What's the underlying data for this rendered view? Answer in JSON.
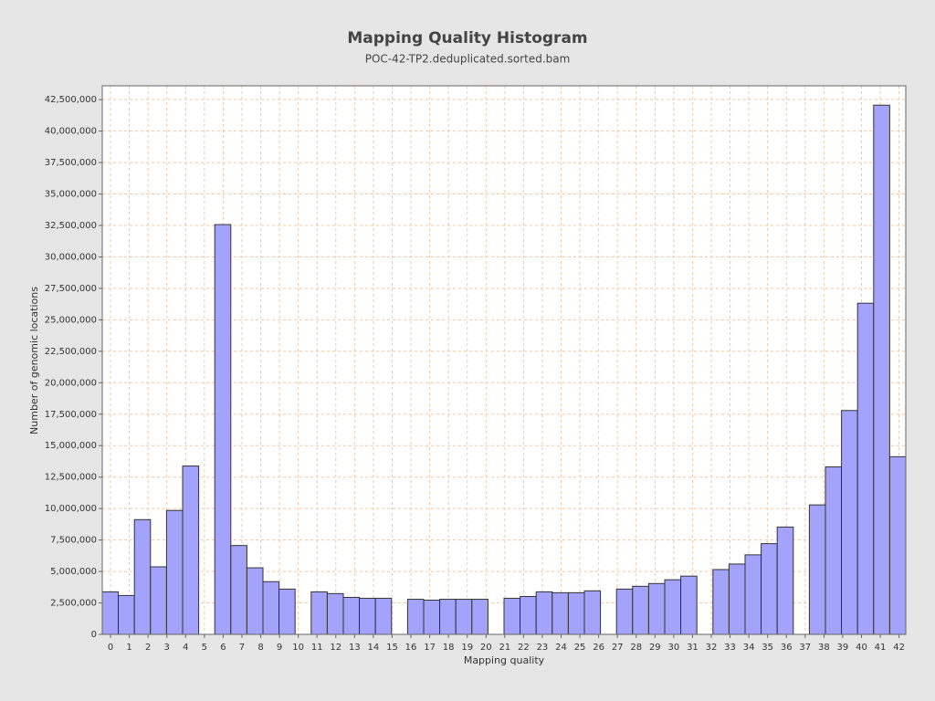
{
  "chart_data": {
    "type": "histogram",
    "title": "Mapping Quality Histogram",
    "subtitle": "POC-42-TP2.deduplicated.sorted.bam",
    "x_label": "Mapping quality",
    "y_label": "Number of genomic locations",
    "bins": [
      -0.44,
      0.416,
      1.272,
      2.128,
      2.984,
      3.84,
      4.696,
      5.552,
      6.408,
      7.264,
      8.12,
      8.976,
      9.832,
      10.688,
      11.544,
      12.4,
      13.256,
      14.112,
      14.968,
      15.824,
      16.68,
      17.536,
      18.392,
      19.248,
      20.104,
      20.96,
      21.816,
      22.672,
      23.528,
      24.384,
      25.24,
      26.096,
      26.952,
      27.808,
      28.664,
      29.52,
      30.376,
      31.232,
      32.088,
      32.944,
      33.8,
      34.656,
      35.512,
      36.368,
      37.224,
      38.08,
      38.936,
      39.792,
      40.648,
      41.504,
      42.36
    ],
    "values": [
      3380000,
      3090000,
      9120000,
      5370000,
      9850000,
      13380000,
      0,
      32570000,
      7060000,
      5290000,
      4190000,
      3600000,
      0,
      3380000,
      3240000,
      2940000,
      2870000,
      2870000,
      0,
      2790000,
      2720000,
      2790000,
      2790000,
      2790000,
      0,
      2870000,
      3010000,
      3380000,
      3310000,
      3310000,
      3460000,
      0,
      3600000,
      3820000,
      4040000,
      4340000,
      4630000,
      0,
      5150000,
      5590000,
      6320000,
      7210000,
      8530000,
      0,
      10290000,
      13310000,
      17790000,
      26320000,
      42060000,
      14120000
    ],
    "color": "#a3a3fb",
    "xlim": [
      -0.44,
      42.36
    ],
    "xticks": [
      0,
      1,
      2,
      3,
      4,
      5,
      6,
      7,
      8,
      9,
      10,
      11,
      12,
      13,
      14,
      15,
      16,
      17,
      18,
      19,
      20,
      21,
      22,
      23,
      24,
      25,
      26,
      27,
      28,
      29,
      30,
      31,
      32,
      33,
      34,
      35,
      36,
      37,
      38,
      39,
      40,
      41,
      42
    ],
    "ylim": [
      0,
      43600000
    ],
    "yticks": [
      0,
      {
        "value": 2500000,
        "label": "2,500,000"
      },
      {
        "value": 5000000,
        "label": "5,000,000"
      },
      {
        "value": 7500000,
        "label": "7,500,000"
      },
      {
        "value": 10000000,
        "label": "10,000,000"
      },
      {
        "value": 12500000,
        "label": "12,500,000"
      },
      {
        "value": 15000000,
        "label": "15,000,000"
      },
      {
        "value": 17500000,
        "label": "17,500,000"
      },
      {
        "value": 20000000,
        "label": "20,000,000"
      },
      {
        "value": 22500000,
        "label": "22,500,000"
      },
      {
        "value": 25000000,
        "label": "25,000,000"
      },
      {
        "value": 27500000,
        "label": "27,500,000"
      },
      {
        "value": 30000000,
        "label": "30,000,000"
      },
      {
        "value": 32500000,
        "label": "32,500,000"
      },
      {
        "value": 35000000,
        "label": "35,000,000"
      },
      {
        "value": 37500000,
        "label": "37,500,000"
      },
      {
        "value": 40000000,
        "label": "40,000,000"
      },
      {
        "value": 42500000,
        "label": "42,500,000"
      }
    ],
    "grid": true
  }
}
